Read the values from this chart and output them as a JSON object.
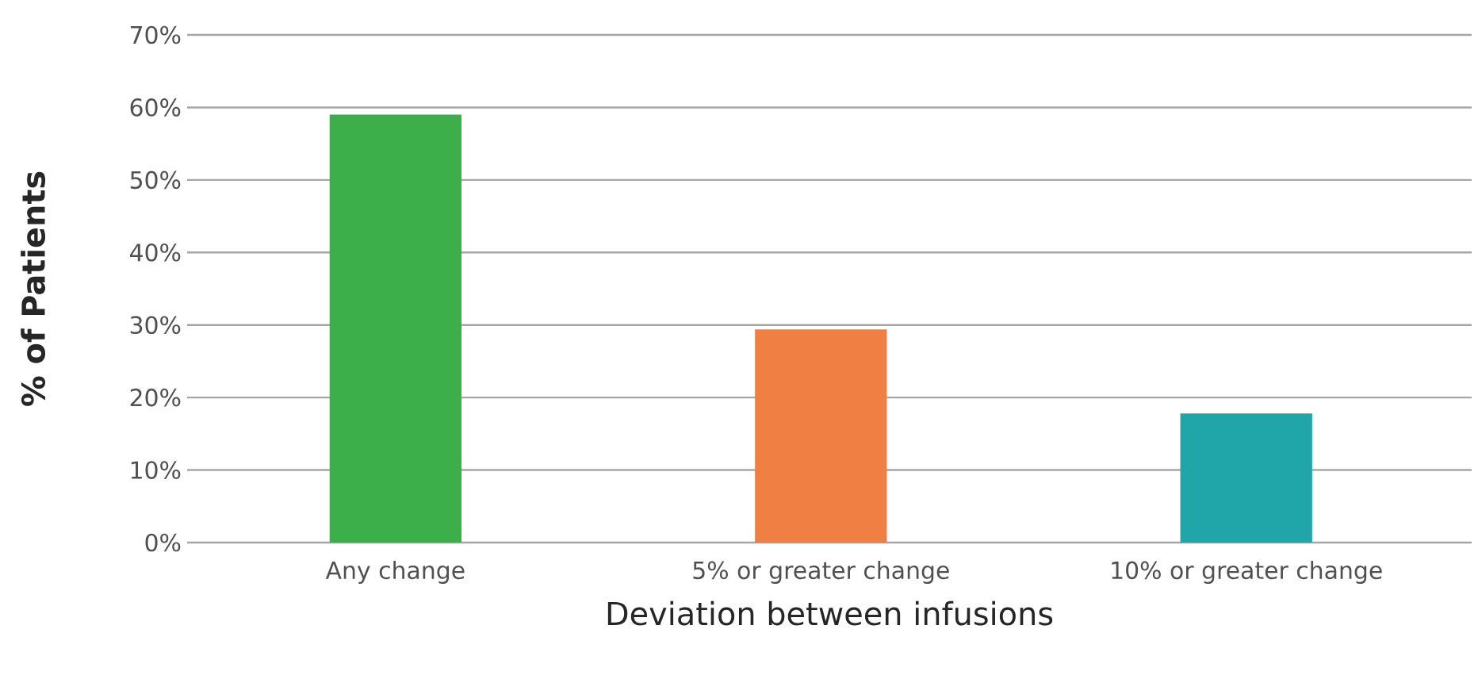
{
  "chart_data": {
    "type": "bar",
    "xlabel": "Deviation between infusions",
    "ylabel": "% of Patients",
    "categories": [
      "Any change",
      "5% or greater change",
      "10% or greater change"
    ],
    "values": [
      59,
      29.4,
      17.8
    ],
    "colors": [
      "#3cae4a",
      "#f07f43",
      "#20a6a8"
    ],
    "ylim": [
      0,
      70
    ],
    "yticks": [
      {
        "value": 0,
        "label": "0%"
      },
      {
        "value": 10,
        "label": "10%"
      },
      {
        "value": 20,
        "label": "20%"
      },
      {
        "value": 30,
        "label": "30%"
      },
      {
        "value": 40,
        "label": "40%"
      },
      {
        "value": 50,
        "label": "50%"
      },
      {
        "value": 60,
        "label": "60%"
      },
      {
        "value": 70,
        "label": "70%"
      }
    ],
    "grid": "y"
  }
}
